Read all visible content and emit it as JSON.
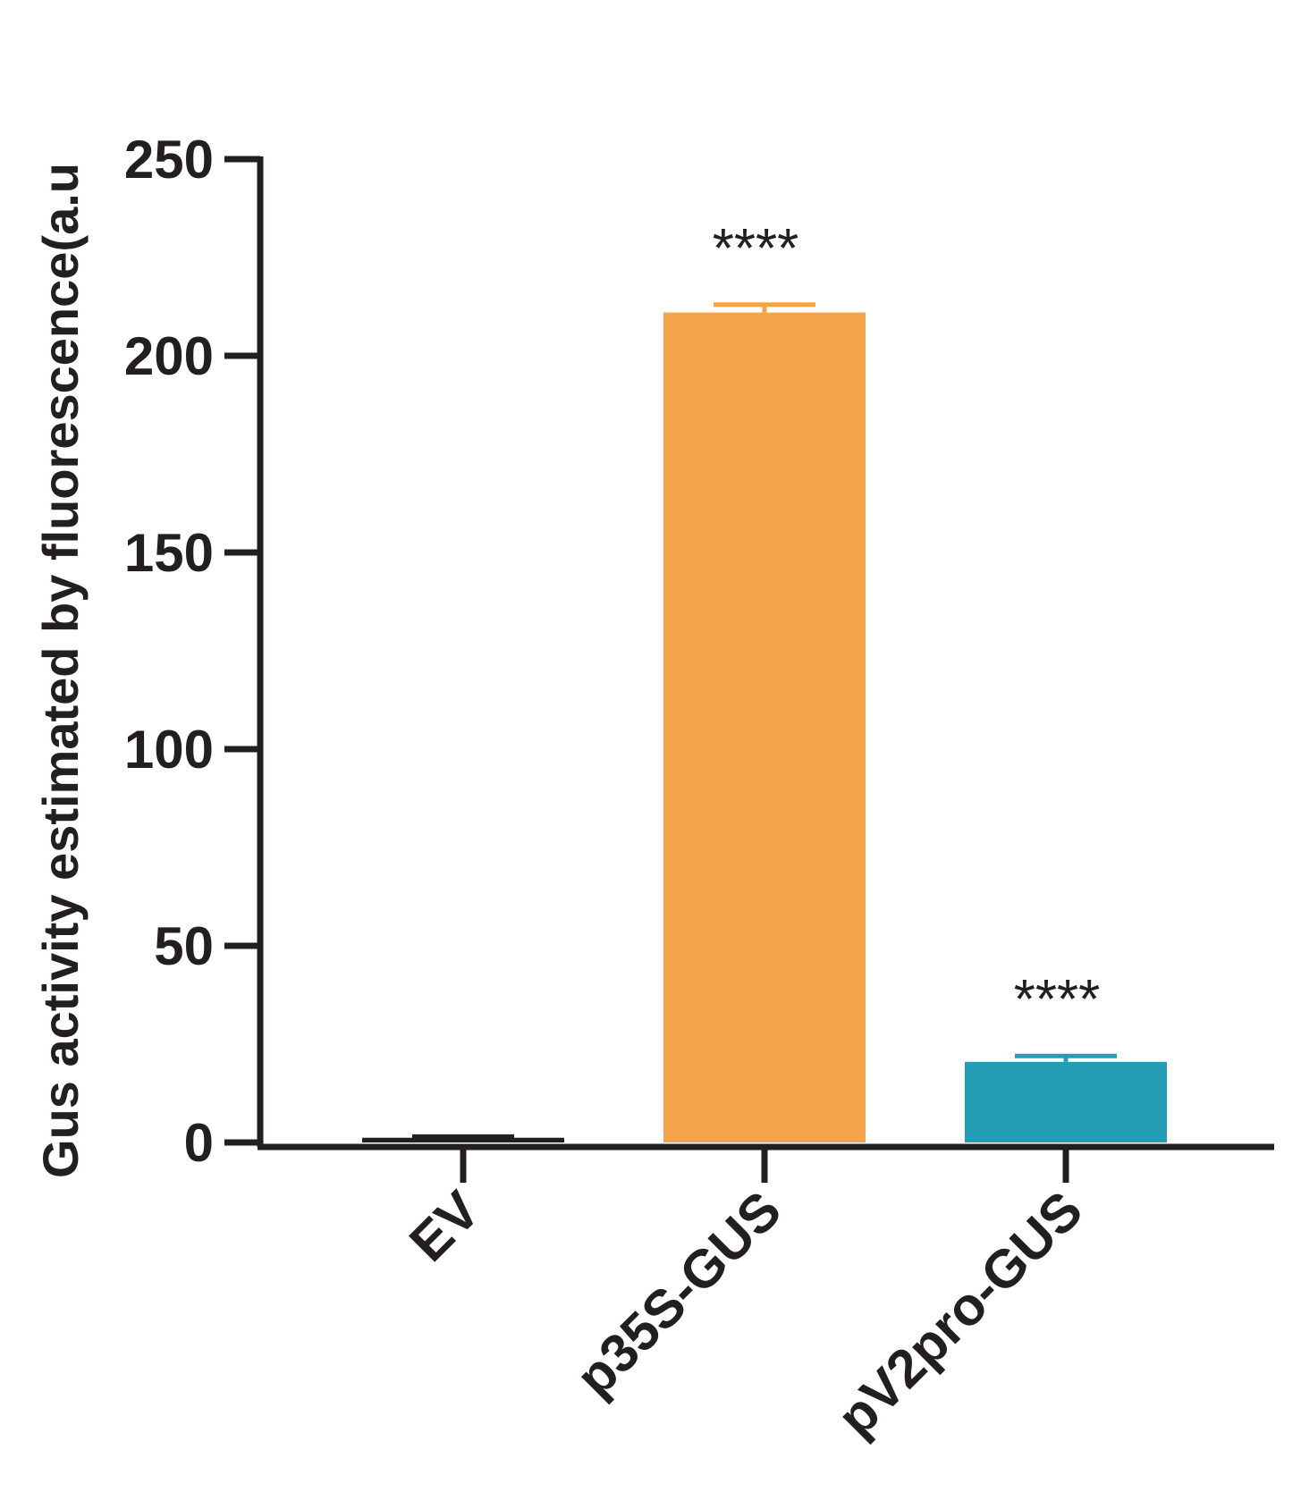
{
  "chart_data": {
    "type": "bar",
    "categories": [
      "EV",
      "p35S-GUS",
      "pV2pro-GUS"
    ],
    "values": [
      1.2,
      211,
      20.5
    ],
    "errors": [
      0.3,
      2,
      1.5
    ],
    "significance": [
      "",
      "****",
      "****"
    ],
    "colors": [
      "#231f20",
      "#f5a34b",
      "#259eb5"
    ],
    "title": "",
    "xlabel": "",
    "ylabel": "Gus activity estimated by fluorescence(a.u",
    "ylim": [
      0,
      250
    ],
    "yticks": [
      0,
      50,
      100,
      150,
      200,
      250
    ],
    "grid": false,
    "legend": "none"
  }
}
